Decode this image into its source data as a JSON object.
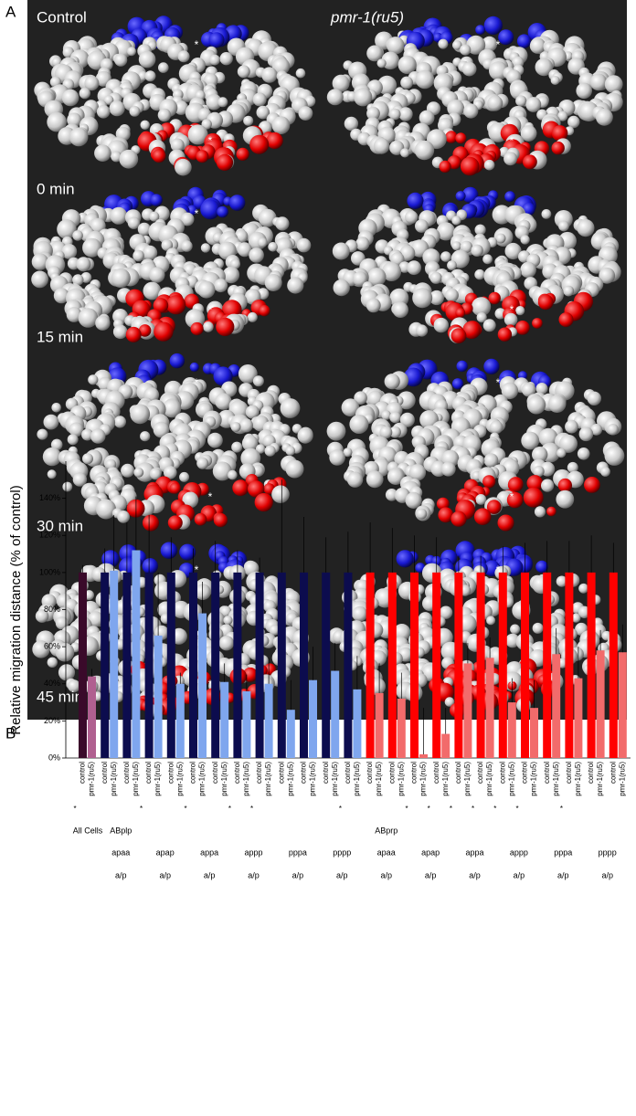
{
  "panel_labels": [
    "A",
    "B"
  ],
  "panel_a": {
    "columns": [
      "Control",
      "pmr-1(ru5)"
    ],
    "times": [
      "0 min",
      "15 min",
      "30 min",
      "45 min"
    ],
    "cell_marker": "*"
  },
  "chart_data": {
    "type": "bar",
    "y_label": "Relative migration distance (% of control)",
    "ylim": [
      0,
      160
    ],
    "yticks": [
      {
        "value": 0,
        "label": "0%"
      },
      {
        "value": 20,
        "label": "20%"
      },
      {
        "value": 40,
        "label": "40%"
      },
      {
        "value": 60,
        "label": "60%"
      },
      {
        "value": 80,
        "label": "80%"
      },
      {
        "value": 100,
        "label": "100%"
      },
      {
        "value": 120,
        "label": "120%"
      },
      {
        "value": 140,
        "label": "140%"
      }
    ],
    "categories": [
      "All Cells",
      null,
      null,
      null,
      null,
      null,
      null,
      null,
      null,
      null,
      null,
      null,
      null,
      null,
      null,
      null,
      null,
      null,
      null,
      null,
      null,
      null,
      null,
      null,
      null
    ],
    "lineages": [
      {
        "name": "ABplp",
        "cells": [
          {
            "name": "apaa",
            "sides": "a/p"
          },
          {
            "name": "apap",
            "sides": "a/p"
          },
          {
            "name": "appa",
            "sides": "a/p"
          },
          {
            "name": "appp",
            "sides": "a/p"
          },
          {
            "name": "pppa",
            "sides": "a/p"
          },
          {
            "name": "pppp",
            "sides": "a/p"
          }
        ]
      },
      {
        "name": "ABprp",
        "cells": [
          {
            "name": "apaa",
            "sides": "a/p"
          },
          {
            "name": "apap",
            "sides": "a/p"
          },
          {
            "name": "appa",
            "sides": "a/p"
          },
          {
            "name": "appp",
            "sides": "a/p"
          },
          {
            "name": "pppa",
            "sides": "a/p"
          },
          {
            "name": "pppp",
            "sides": "a/p"
          }
        ]
      }
    ],
    "series": [
      {
        "name": "control",
        "colors": [
          "#3a0a2a",
          "#0c0c4e",
          "#0c0c4e",
          "#0c0c4e",
          "#0c0c4e",
          "#0c0c4e",
          "#0c0c4e",
          "#0c0c4e",
          "#0c0c4e",
          "#0c0c4e",
          "#0c0c4e",
          "#0c0c4e",
          "#0c0c4e",
          "#ff0000",
          "#ff0000",
          "#ff0000",
          "#ff0000",
          "#ff0000",
          "#ff0000",
          "#ff0000",
          "#ff0000",
          "#ff0000",
          "#ff0000",
          "#ff0000",
          "#ff0000"
        ],
        "values": [
          100,
          100,
          100,
          100,
          100,
          100,
          100,
          100,
          100,
          100,
          100,
          100,
          100,
          100,
          100,
          100,
          100,
          100,
          100,
          100,
          100,
          100,
          100,
          100,
          100
        ],
        "errors": [
          4,
          13,
          27,
          31,
          19,
          13,
          17,
          12,
          8,
          50,
          30,
          19,
          22,
          27,
          24,
          20,
          19,
          9,
          9,
          14,
          16,
          17,
          17,
          20,
          16
        ]
      },
      {
        "name": "pmr-1(ru5)",
        "colors": [
          "#b06090",
          "#7fa6ee",
          "#7fa6ee",
          "#7fa6ee",
          "#7fa6ee",
          "#7fa6ee",
          "#7fa6ee",
          "#7fa6ee",
          "#7fa6ee",
          "#7fa6ee",
          "#7fa6ee",
          "#7fa6ee",
          "#7fa6ee",
          "#f26b6b",
          "#f26b6b",
          "#f26b6b",
          "#f26b6b",
          "#f26b6b",
          "#f26b6b",
          "#f26b6b",
          "#f26b6b",
          "#f26b6b",
          "#f26b6b",
          "#f26b6b",
          "#f26b6b"
        ],
        "values": [
          44,
          101,
          112,
          66,
          40,
          78,
          41,
          36,
          40,
          26,
          42,
          47,
          37,
          35,
          32,
          2,
          13,
          51,
          54,
          30,
          27,
          56,
          43,
          58,
          57
        ],
        "errors": [
          4,
          30,
          29,
          34,
          6,
          17,
          10,
          9,
          14,
          16,
          18,
          15,
          18,
          16,
          14,
          25,
          14,
          11,
          11,
          13,
          15,
          14,
          17,
          11,
          15
        ]
      }
    ],
    "significance_marker": "*",
    "significant": [
      true,
      false,
      false,
      true,
      false,
      true,
      false,
      true,
      true,
      false,
      false,
      false,
      true,
      false,
      false,
      true,
      true,
      true,
      true,
      true,
      true,
      false,
      true,
      false,
      false
    ]
  }
}
